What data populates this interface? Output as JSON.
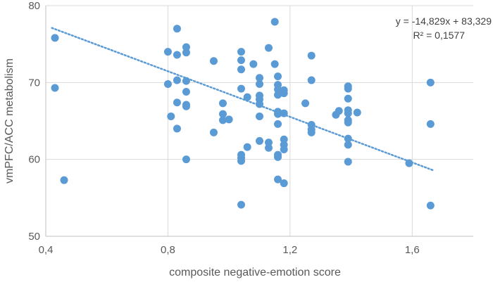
{
  "chart_data": {
    "type": "scatter",
    "title": "",
    "xlabel": "composite negative-emotion score",
    "ylabel": "vmPFC/ACC metabolism",
    "xlim": [
      0.4,
      1.8
    ],
    "ylim": [
      50,
      80
    ],
    "x_ticks": [
      0.4,
      0.8,
      1.2,
      1.6
    ],
    "x_tick_labels": [
      "0,4",
      "0,8",
      "1,2",
      "1,6"
    ],
    "y_ticks": [
      50,
      60,
      70,
      80
    ],
    "y_tick_labels": [
      "50",
      "60",
      "70",
      "80"
    ],
    "grid": true,
    "marker_color": "#5b9bd5",
    "trendline": {
      "slope": -14.829,
      "intercept": 83.329,
      "x_range": [
        0.42,
        1.67
      ],
      "color": "#5b9bd5",
      "equation_label": "y = -14,829x + 83,329",
      "r2_label": "R² = 0,1577"
    },
    "points": [
      [
        0.43,
        75.8
      ],
      [
        0.43,
        69.3
      ],
      [
        0.46,
        57.3
      ],
      [
        0.8,
        74.0
      ],
      [
        0.8,
        69.8
      ],
      [
        0.81,
        65.6
      ],
      [
        0.83,
        77.0
      ],
      [
        0.83,
        73.6
      ],
      [
        0.83,
        70.3
      ],
      [
        0.83,
        67.4
      ],
      [
        0.83,
        64.0
      ],
      [
        0.86,
        74.6
      ],
      [
        0.86,
        73.9
      ],
      [
        0.86,
        70.2
      ],
      [
        0.86,
        68.8
      ],
      [
        0.86,
        67.1
      ],
      [
        0.86,
        66.9
      ],
      [
        0.86,
        60.0
      ],
      [
        0.95,
        72.8
      ],
      [
        0.95,
        63.5
      ],
      [
        0.98,
        67.3
      ],
      [
        0.98,
        65.9
      ],
      [
        0.98,
        65.1
      ],
      [
        1.0,
        65.2
      ],
      [
        1.04,
        74.0
      ],
      [
        1.04,
        72.9
      ],
      [
        1.04,
        71.7
      ],
      [
        1.04,
        69.2
      ],
      [
        1.04,
        60.6
      ],
      [
        1.04,
        60.2
      ],
      [
        1.04,
        59.8
      ],
      [
        1.04,
        54.1
      ],
      [
        1.06,
        68.1
      ],
      [
        1.06,
        61.6
      ],
      [
        1.08,
        72.4
      ],
      [
        1.1,
        70.6
      ],
      [
        1.1,
        69.8
      ],
      [
        1.1,
        68.3
      ],
      [
        1.1,
        67.8
      ],
      [
        1.1,
        67.2
      ],
      [
        1.1,
        65.6
      ],
      [
        1.1,
        62.4
      ],
      [
        1.13,
        74.5
      ],
      [
        1.13,
        62.2
      ],
      [
        1.13,
        61.5
      ],
      [
        1.15,
        77.9
      ],
      [
        1.15,
        72.4
      ],
      [
        1.16,
        70.8
      ],
      [
        1.16,
        69.7
      ],
      [
        1.16,
        69.1
      ],
      [
        1.16,
        68.4
      ],
      [
        1.16,
        66.2
      ],
      [
        1.16,
        65.9
      ],
      [
        1.16,
        64.6
      ],
      [
        1.16,
        60.6
      ],
      [
        1.16,
        60.3
      ],
      [
        1.16,
        57.4
      ],
      [
        1.18,
        69.0
      ],
      [
        1.18,
        68.6
      ],
      [
        1.18,
        66.0
      ],
      [
        1.18,
        62.6
      ],
      [
        1.18,
        61.9
      ],
      [
        1.18,
        61.3
      ],
      [
        1.18,
        56.9
      ],
      [
        1.25,
        67.3
      ],
      [
        1.27,
        73.5
      ],
      [
        1.27,
        70.3
      ],
      [
        1.27,
        64.5
      ],
      [
        1.27,
        63.9
      ],
      [
        1.27,
        63.5
      ],
      [
        1.35,
        65.8
      ],
      [
        1.36,
        66.3
      ],
      [
        1.39,
        69.5
      ],
      [
        1.39,
        69.2
      ],
      [
        1.39,
        67.9
      ],
      [
        1.39,
        66.4
      ],
      [
        1.39,
        66.0
      ],
      [
        1.39,
        65.1
      ],
      [
        1.39,
        64.8
      ],
      [
        1.39,
        62.7
      ],
      [
        1.39,
        61.9
      ],
      [
        1.39,
        59.7
      ],
      [
        1.42,
        66.1
      ],
      [
        1.59,
        59.5
      ],
      [
        1.66,
        70.0
      ],
      [
        1.66,
        64.6
      ],
      [
        1.66,
        54.0
      ]
    ]
  }
}
